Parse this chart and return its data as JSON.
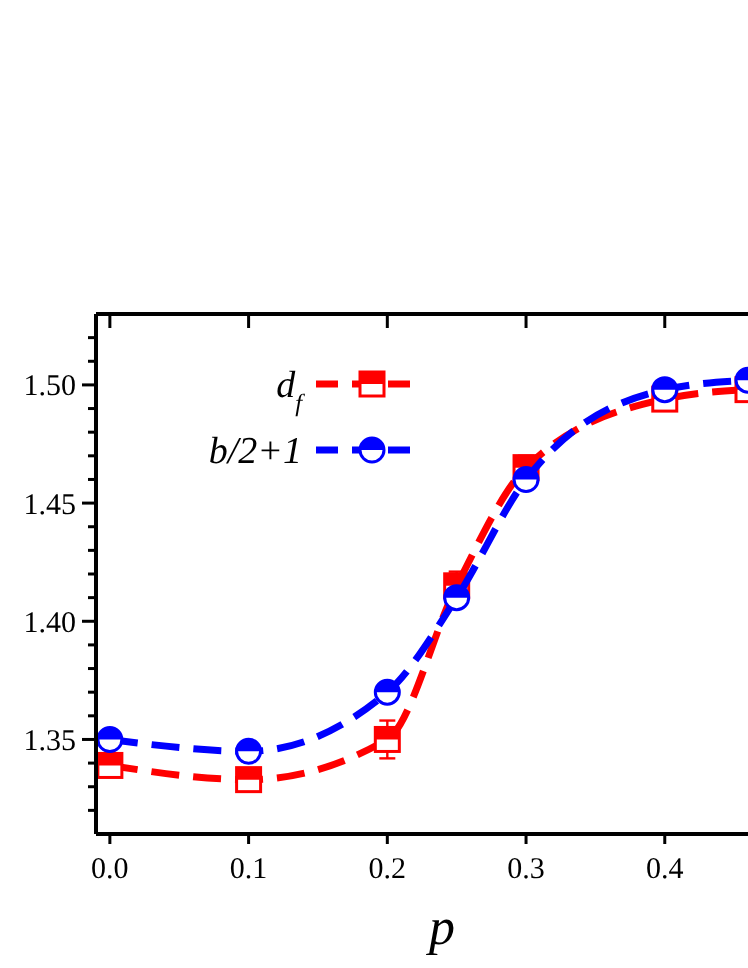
{
  "chart_data": {
    "type": "line",
    "xlabel": "p",
    "x": [
      0,
      0.1,
      0.2,
      0.25,
      0.3,
      0.4,
      0.46
    ],
    "series": [
      {
        "name": "d$_{f}$",
        "color": "#ff0000",
        "marker": "square",
        "values": [
          1.339,
          1.333,
          1.35,
          1.415,
          1.465,
          1.494,
          1.498
        ],
        "errors": [
          0.003,
          0.002,
          0.008,
          0.006,
          0.005,
          0.003,
          null
        ]
      },
      {
        "name": "b/2+1",
        "color": "#0000ff",
        "marker": "circle",
        "values": [
          1.35,
          1.345,
          1.37,
          1.41,
          1.46,
          1.498,
          1.502
        ],
        "errors": [
          0.003,
          0.003,
          0.003,
          0.003,
          0.003,
          0.002,
          null
        ]
      }
    ],
    "xlim": [
      -0.01,
      0.46
    ],
    "ylim": [
      1.31,
      1.53
    ],
    "xticks": [
      {
        "value": 0,
        "label": "0.0"
      },
      {
        "value": 0.1,
        "label": "0.1"
      },
      {
        "value": 0.2,
        "label": "0.2"
      },
      {
        "value": 0.3,
        "label": "0.3"
      },
      {
        "value": 0.4,
        "label": "0.4"
      }
    ],
    "yticks": [
      {
        "value": 1.32,
        "label": null
      },
      {
        "value": 1.33,
        "label": null
      },
      {
        "value": 1.34,
        "label": null
      },
      1.35,
      {
        "value": 1.36,
        "label": null
      },
      {
        "value": 1.37,
        "label": null
      },
      {
        "value": 1.38,
        "label": null
      },
      {
        "value": 1.39,
        "label": null
      },
      {
        "value": 1.4,
        "label": "1.40"
      },
      {
        "value": 1.41,
        "label": null
      },
      {
        "value": 1.42,
        "label": null
      },
      {
        "value": 1.43,
        "label": null
      },
      {
        "value": 1.44,
        "label": null
      },
      1.45,
      {
        "value": 1.46,
        "label": null
      },
      {
        "value": 1.47,
        "label": null
      },
      {
        "value": 1.48,
        "label": null
      },
      {
        "value": 1.49,
        "label": null
      },
      {
        "value": 1.5,
        "label": "1.50"
      },
      {
        "value": 1.51,
        "label": null
      },
      {
        "value": 1.52,
        "label": null
      }
    ],
    "legend": "top left",
    "line_style": "dashed",
    "grid": false
  }
}
